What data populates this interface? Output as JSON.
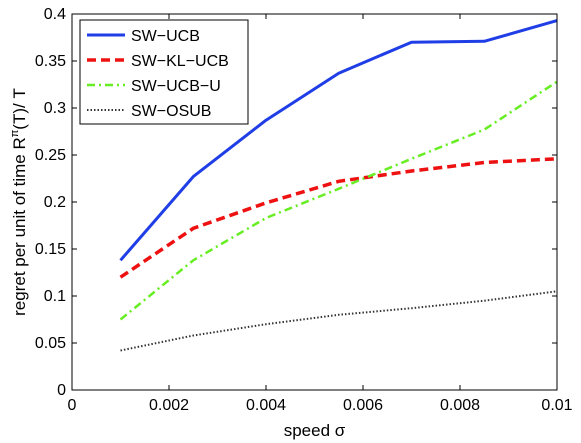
{
  "chart_data": {
    "type": "line",
    "xlabel": "speed σ",
    "ylabel": "regret per unit of time R",
    "ylabel_sup": "π",
    "ylabel_tail": "(T)/ T",
    "xlim": [
      0,
      0.01
    ],
    "ylim": [
      0,
      0.4
    ],
    "xticks": [
      0,
      0.002,
      0.004,
      0.006,
      0.008,
      0.01
    ],
    "xtick_labels": [
      "0",
      "0.002",
      "0.004",
      "0.006",
      "0.008",
      "0.01"
    ],
    "yticks": [
      0,
      0.05,
      0.1,
      0.15,
      0.2,
      0.25,
      0.3,
      0.35,
      0.4
    ],
    "ytick_labels": [
      "0",
      "0.05",
      "0.1",
      "0.15",
      "0.2",
      "0.25",
      "0.3",
      "0.35",
      "0.4"
    ],
    "grid": false,
    "legend_position": "top-left",
    "x": [
      0.001,
      0.0025,
      0.004,
      0.0055,
      0.007,
      0.0085,
      0.01
    ],
    "series": [
      {
        "name": "SW−UCB",
        "values": [
          0.138,
          0.227,
          0.287,
          0.337,
          0.37,
          0.371,
          0.393
        ],
        "color": "#1f3ee6",
        "style": "solid"
      },
      {
        "name": "SW−KL−UCB",
        "values": [
          0.12,
          0.172,
          0.199,
          0.222,
          0.233,
          0.242,
          0.246
        ],
        "color": "#ee1111",
        "style": "dashed"
      },
      {
        "name": "SW−UCB−U",
        "values": [
          0.075,
          0.138,
          0.183,
          0.214,
          0.246,
          0.277,
          0.328
        ],
        "color": "#66ee22",
        "style": "dashdot"
      },
      {
        "name": "SW−OSUB",
        "values": [
          0.042,
          0.058,
          0.07,
          0.08,
          0.087,
          0.095,
          0.105
        ],
        "color": "#333333",
        "style": "dotted"
      }
    ]
  }
}
